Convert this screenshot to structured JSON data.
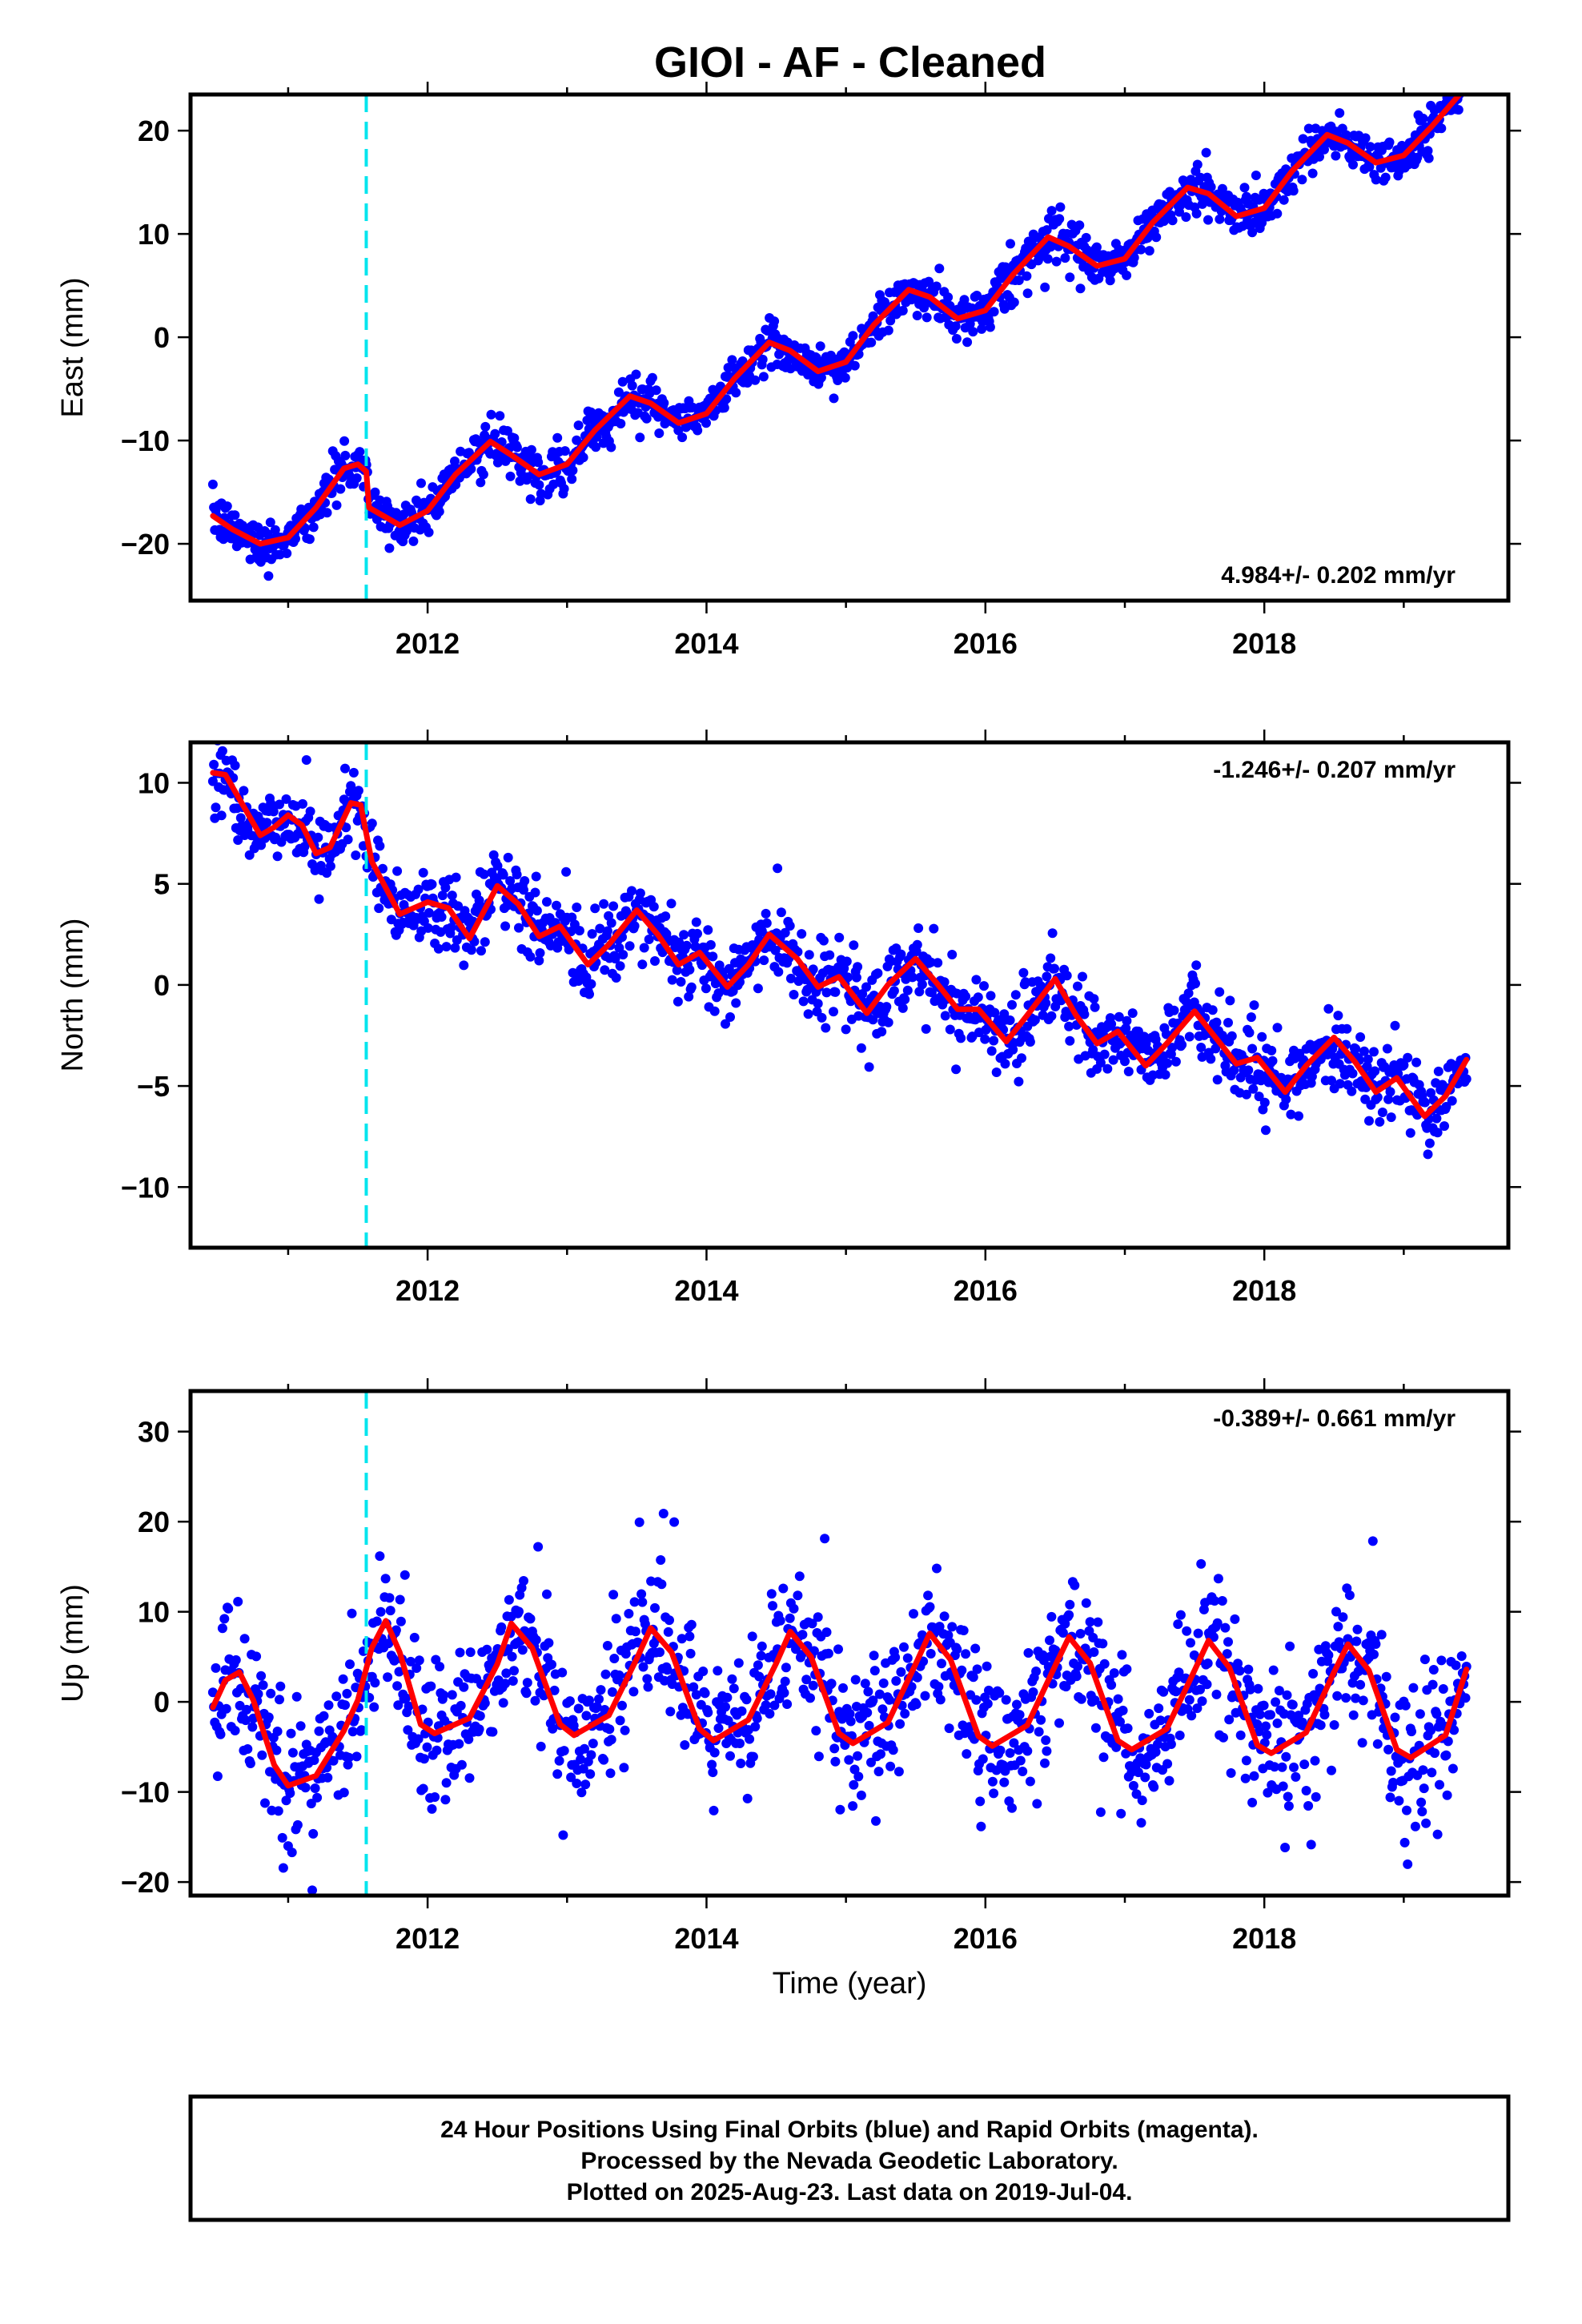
{
  "figure": {
    "title": "GIOI  - AF - Cleaned",
    "footer_lines": [
      "24 Hour Positions Using Final Orbits (blue) and Rapid Orbits (magenta).",
      "Processed by the Nevada Geodetic Laboratory.",
      "Plotted on 2025-Aug-23. Last data on 2019-Jul-04."
    ],
    "colors": {
      "final_orbits": "#0000ff",
      "model": "#ff0000",
      "equipment_change": "#00e5ee"
    }
  },
  "chart_data": [
    {
      "type": "scatter",
      "name": "East",
      "ylabel": "East (mm)",
      "xlabel": "",
      "xlim": [
        2010.3,
        2019.75
      ],
      "ylim": [
        -25.5,
        23.5
      ],
      "x_ticks": [
        2012,
        2014,
        2016,
        2018
      ],
      "y_ticks": [
        -20,
        -10,
        0,
        10,
        20
      ],
      "rate_label": "4.984+/- 0.202 mm/yr",
      "rate_position": "bottom-right",
      "equipment_change_x": 2011.56,
      "model_points": [
        [
          2010.46,
          -17.3
        ],
        [
          2010.6,
          -18.6
        ],
        [
          2010.8,
          -20.0
        ],
        [
          2011.0,
          -19.4
        ],
        [
          2011.2,
          -16.5
        ],
        [
          2011.4,
          -12.7
        ],
        [
          2011.5,
          -12.3
        ],
        [
          2011.56,
          -13.0
        ],
        [
          2011.58,
          -16.5
        ],
        [
          2011.8,
          -18.2
        ],
        [
          2012.0,
          -16.8
        ],
        [
          2012.2,
          -13.3
        ],
        [
          2012.45,
          -10.1
        ],
        [
          2012.6,
          -11.4
        ],
        [
          2012.8,
          -13.3
        ],
        [
          2013.0,
          -12.3
        ],
        [
          2013.2,
          -9.0
        ],
        [
          2013.45,
          -5.7
        ],
        [
          2013.6,
          -6.4
        ],
        [
          2013.8,
          -8.3
        ],
        [
          2014.0,
          -7.4
        ],
        [
          2014.2,
          -4.0
        ],
        [
          2014.45,
          -0.5
        ],
        [
          2014.6,
          -1.3
        ],
        [
          2014.8,
          -3.3
        ],
        [
          2015.0,
          -2.4
        ],
        [
          2015.2,
          1.2
        ],
        [
          2015.45,
          4.6
        ],
        [
          2015.6,
          3.9
        ],
        [
          2015.8,
          1.8
        ],
        [
          2016.0,
          2.6
        ],
        [
          2016.2,
          6.1
        ],
        [
          2016.45,
          9.7
        ],
        [
          2016.6,
          8.8
        ],
        [
          2016.8,
          6.9
        ],
        [
          2017.0,
          7.6
        ],
        [
          2017.2,
          11.1
        ],
        [
          2017.45,
          14.5
        ],
        [
          2017.6,
          13.9
        ],
        [
          2017.8,
          11.7
        ],
        [
          2018.0,
          12.5
        ],
        [
          2018.2,
          16.1
        ],
        [
          2018.45,
          19.6
        ],
        [
          2018.6,
          18.8
        ],
        [
          2018.8,
          16.9
        ],
        [
          2019.0,
          17.6
        ],
        [
          2019.2,
          20.4
        ],
        [
          2019.4,
          23.5
        ]
      ]
    },
    {
      "type": "scatter",
      "name": "North",
      "ylabel": "North (mm)",
      "xlabel": "",
      "xlim": [
        2010.3,
        2019.75
      ],
      "ylim": [
        -13.0,
        12.0
      ],
      "x_ticks": [
        2012,
        2014,
        2016,
        2018
      ],
      "y_ticks": [
        -10,
        -5,
        0,
        5,
        10
      ],
      "rate_label": "-1.246+/- 0.207 mm/yr",
      "rate_position": "top-right",
      "equipment_change_x": 2011.56,
      "model_points": [
        [
          2010.46,
          10.5
        ],
        [
          2010.55,
          10.4
        ],
        [
          2010.7,
          8.6
        ],
        [
          2010.8,
          7.4
        ],
        [
          2010.9,
          7.8
        ],
        [
          2011.0,
          8.4
        ],
        [
          2011.1,
          7.9
        ],
        [
          2011.2,
          6.5
        ],
        [
          2011.3,
          6.8
        ],
        [
          2011.45,
          9.0
        ],
        [
          2011.52,
          8.9
        ],
        [
          2011.6,
          6.1
        ],
        [
          2011.8,
          3.5
        ],
        [
          2012.0,
          4.1
        ],
        [
          2012.15,
          3.8
        ],
        [
          2012.3,
          2.3
        ],
        [
          2012.5,
          4.9
        ],
        [
          2012.65,
          4.0
        ],
        [
          2012.8,
          2.4
        ],
        [
          2012.95,
          2.9
        ],
        [
          2013.15,
          1.0
        ],
        [
          2013.3,
          2.0
        ],
        [
          2013.5,
          3.7
        ],
        [
          2013.65,
          2.5
        ],
        [
          2013.8,
          1.0
        ],
        [
          2013.95,
          1.6
        ],
        [
          2014.15,
          -0.1
        ],
        [
          2014.3,
          1.0
        ],
        [
          2014.45,
          2.5
        ],
        [
          2014.65,
          1.3
        ],
        [
          2014.8,
          -0.1
        ],
        [
          2014.95,
          0.4
        ],
        [
          2015.15,
          -1.4
        ],
        [
          2015.3,
          0.0
        ],
        [
          2015.5,
          1.3
        ],
        [
          2015.65,
          0.1
        ],
        [
          2015.8,
          -1.2
        ],
        [
          2015.95,
          -1.2
        ],
        [
          2016.15,
          -2.8
        ],
        [
          2016.3,
          -1.5
        ],
        [
          2016.5,
          0.3
        ],
        [
          2016.65,
          -1.5
        ],
        [
          2016.8,
          -2.9
        ],
        [
          2016.95,
          -2.3
        ],
        [
          2017.15,
          -4.0
        ],
        [
          2017.3,
          -2.9
        ],
        [
          2017.5,
          -1.3
        ],
        [
          2017.65,
          -2.6
        ],
        [
          2017.8,
          -3.9
        ],
        [
          2017.95,
          -3.6
        ],
        [
          2018.15,
          -5.3
        ],
        [
          2018.3,
          -4.0
        ],
        [
          2018.5,
          -2.6
        ],
        [
          2018.65,
          -3.8
        ],
        [
          2018.8,
          -5.3
        ],
        [
          2018.95,
          -4.6
        ],
        [
          2019.15,
          -6.5
        ],
        [
          2019.3,
          -5.5
        ],
        [
          2019.45,
          -3.7
        ]
      ]
    },
    {
      "type": "scatter",
      "name": "Up",
      "ylabel": "Up (mm)",
      "xlabel": "Time (year)",
      "xlim": [
        2010.3,
        2019.75
      ],
      "ylim": [
        -21.5,
        34.5
      ],
      "x_ticks": [
        2012,
        2014,
        2016,
        2018
      ],
      "y_ticks": [
        -20,
        -10,
        0,
        10,
        20,
        30
      ],
      "rate_label": "-0.389+/- 0.661 mm/yr",
      "rate_position": "top-right",
      "equipment_change_x": 2011.56,
      "model_points": [
        [
          2010.46,
          -0.6
        ],
        [
          2010.55,
          2.4
        ],
        [
          2010.65,
          3.3
        ],
        [
          2010.75,
          0.2
        ],
        [
          2010.9,
          -7.0
        ],
        [
          2011.0,
          -9.3
        ],
        [
          2011.2,
          -8.2
        ],
        [
          2011.4,
          -3.2
        ],
        [
          2011.5,
          0.2
        ],
        [
          2011.6,
          6.0
        ],
        [
          2011.7,
          9.0
        ],
        [
          2011.8,
          5.5
        ],
        [
          2011.95,
          -2.5
        ],
        [
          2012.05,
          -3.5
        ],
        [
          2012.3,
          -1.8
        ],
        [
          2012.5,
          4.2
        ],
        [
          2012.6,
          8.7
        ],
        [
          2012.75,
          6.0
        ],
        [
          2012.95,
          -2.5
        ],
        [
          2013.05,
          -3.7
        ],
        [
          2013.3,
          -1.5
        ],
        [
          2013.5,
          4.8
        ],
        [
          2013.6,
          8.2
        ],
        [
          2013.75,
          5.5
        ],
        [
          2013.95,
          -3.0
        ],
        [
          2014.05,
          -4.3
        ],
        [
          2014.3,
          -2.0
        ],
        [
          2014.5,
          4.3
        ],
        [
          2014.6,
          7.8
        ],
        [
          2014.75,
          5.0
        ],
        [
          2014.95,
          -3.5
        ],
        [
          2015.05,
          -4.6
        ],
        [
          2015.3,
          -2.3
        ],
        [
          2015.5,
          4.2
        ],
        [
          2015.6,
          7.6
        ],
        [
          2015.75,
          4.7
        ],
        [
          2015.95,
          -3.8
        ],
        [
          2016.05,
          -4.9
        ],
        [
          2016.3,
          -2.6
        ],
        [
          2016.5,
          4.0
        ],
        [
          2016.6,
          7.2
        ],
        [
          2016.75,
          4.3
        ],
        [
          2016.95,
          -4.3
        ],
        [
          2017.05,
          -5.3
        ],
        [
          2017.3,
          -3.0
        ],
        [
          2017.5,
          3.5
        ],
        [
          2017.6,
          6.8
        ],
        [
          2017.75,
          3.8
        ],
        [
          2017.95,
          -4.8
        ],
        [
          2018.05,
          -5.7
        ],
        [
          2018.3,
          -3.4
        ],
        [
          2018.5,
          3.3
        ],
        [
          2018.6,
          6.4
        ],
        [
          2018.75,
          3.5
        ],
        [
          2018.95,
          -5.3
        ],
        [
          2019.05,
          -6.2
        ],
        [
          2019.3,
          -3.7
        ],
        [
          2019.45,
          3.6
        ]
      ]
    }
  ]
}
